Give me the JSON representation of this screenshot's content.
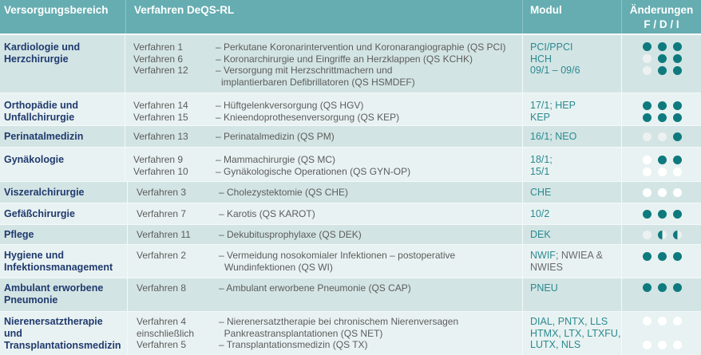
{
  "header": {
    "col1": "Versorgungsbereich",
    "col2": "Verfahren DeQS-RL",
    "col3": "Modul",
    "col4_line1": "Änderungen",
    "col4_line2": "F / D / I"
  },
  "colors": {
    "header_bg": "#65adb1",
    "row_dark": "#d3e4e4",
    "row_light": "#e9f2f2",
    "area_text": "#1f3a6e",
    "module_text": "#2a8a90",
    "dot_filled": "#0e7a7e"
  },
  "rows": [
    {
      "area": [
        "Kardiologie und",
        "Herzchirurgie"
      ],
      "procedures": [
        {
          "name": "Verfahren 1",
          "desc": "– Perkutane Koronarintervention und Koronarangiographie (QS PCI)"
        },
        {
          "name": "Verfahren 6",
          "desc": "– Koronarchirurgie und Eingriffe an Herzklappen (QS KCHK)"
        },
        {
          "name": "Verfahren 12",
          "desc": "– Versorgung mit Herzschrittmachern und implantierbaren Defibrillatoren (QS HSMDEF)"
        }
      ],
      "modules": [
        "PCI/PPCI",
        "HCH",
        "09/1 – 09/6"
      ],
      "changes": [
        [
          "full",
          "full",
          "full"
        ],
        [
          "empty-grey",
          "full",
          "full"
        ],
        [
          "empty-grey",
          "full",
          "full"
        ]
      ]
    },
    {
      "area": [
        "Orthopädie und",
        "Unfallchirurgie"
      ],
      "procedures": [
        {
          "name": "Verfahren 14",
          "desc": "– Hüftgelenkversorgung (QS HGV)"
        },
        {
          "name": "Verfahren 15",
          "desc": "– Knieendoprothesenversorgung (QS KEP)"
        }
      ],
      "modules": [
        "17/1; HEP",
        "KEP"
      ],
      "changes": [
        [
          "full",
          "full",
          "full"
        ],
        [
          "full",
          "full",
          "full"
        ]
      ]
    },
    {
      "area": [
        "Perinatalmedizin"
      ],
      "procedures": [
        {
          "name": "Verfahren 13",
          "desc": "– Perinatalmedizin (QS PM)"
        }
      ],
      "modules": [
        "16/1; NEO"
      ],
      "changes": [
        [
          "empty-grey",
          "empty-grey",
          "full"
        ]
      ]
    },
    {
      "area": [
        "Gynäkologie"
      ],
      "procedures": [
        {
          "name": "Verfahren 9",
          "desc": "– Mammachirurgie (QS MC)"
        },
        {
          "name": "Verfahren 10",
          "desc": "– Gynäkologische Operationen (QS GYN-OP)"
        }
      ],
      "modules": [
        "18/1;",
        "15/1"
      ],
      "changes": [
        [
          "empty-white",
          "full",
          "full"
        ],
        [
          "empty-white",
          "empty-white",
          "empty-white"
        ]
      ]
    },
    {
      "area": [
        "Viszeralchirurgie"
      ],
      "procedures": [
        {
          "name": "Verfahren 3",
          "desc": "– Cholezystektomie (QS CHE)"
        }
      ],
      "modules": [
        "CHE"
      ],
      "changes": [
        [
          "empty-white",
          "empty-white",
          "empty-white"
        ]
      ]
    },
    {
      "area": [
        "Gefäßchirurgie"
      ],
      "procedures": [
        {
          "name": "Verfahren 7",
          "desc": "– Karotis (QS KAROT)"
        }
      ],
      "modules": [
        "10/2"
      ],
      "changes": [
        [
          "full",
          "full",
          "full"
        ]
      ]
    },
    {
      "area": [
        "Pflege"
      ],
      "procedures": [
        {
          "name": "Verfahren 11",
          "desc": "– Dekubitusprophylaxe (QS DEK)"
        }
      ],
      "modules": [
        "DEK"
      ],
      "changes": [
        [
          "empty-grey",
          "half",
          "half"
        ]
      ]
    },
    {
      "area": [
        "Hygiene und",
        "Infektionsmanagement"
      ],
      "procedures": [
        {
          "name": "Verfahren 2",
          "desc": "– Vermeidung nosokomialer Infektionen – postoperative Wundinfektionen (QS WI)"
        }
      ],
      "modules_rich": {
        "teal": "NWIF",
        "grey": "; NWIEA & NWIES"
      },
      "changes": [
        [
          "full",
          "full",
          "full"
        ]
      ]
    },
    {
      "area": [
        "Ambulant erworbene",
        "Pneumonie"
      ],
      "procedures": [
        {
          "name": "Verfahren 8",
          "desc": "– Ambulant erworbene Pneumonie (QS CAP)"
        }
      ],
      "modules": [
        "PNEU"
      ],
      "changes": [
        [
          "full",
          "full",
          "full"
        ]
      ]
    },
    {
      "area": [
        "Nierenersatztherapie",
        "und",
        "Transplantationsmedizin"
      ],
      "procedures": [
        {
          "name": "Verfahren 4",
          "desc": "– Nierenersatztherapie bei chronischem Nierenversagen"
        },
        {
          "name": "einschließlich",
          "desc": "  Pankreastransplantationen (QS NET)"
        },
        {
          "name": "Verfahren 5",
          "desc": "– Transplantationsmedizin (QS TX)"
        }
      ],
      "modules": [
        "DIAL, PNTX, LLS",
        "HTMX, LTX, LTXFU,",
        "LUTX, NLS"
      ],
      "changes": [
        [
          "empty-white",
          "empty-white",
          "empty-white"
        ],
        [
          "empty-white",
          "empty-white",
          "empty-white"
        ]
      ]
    }
  ]
}
